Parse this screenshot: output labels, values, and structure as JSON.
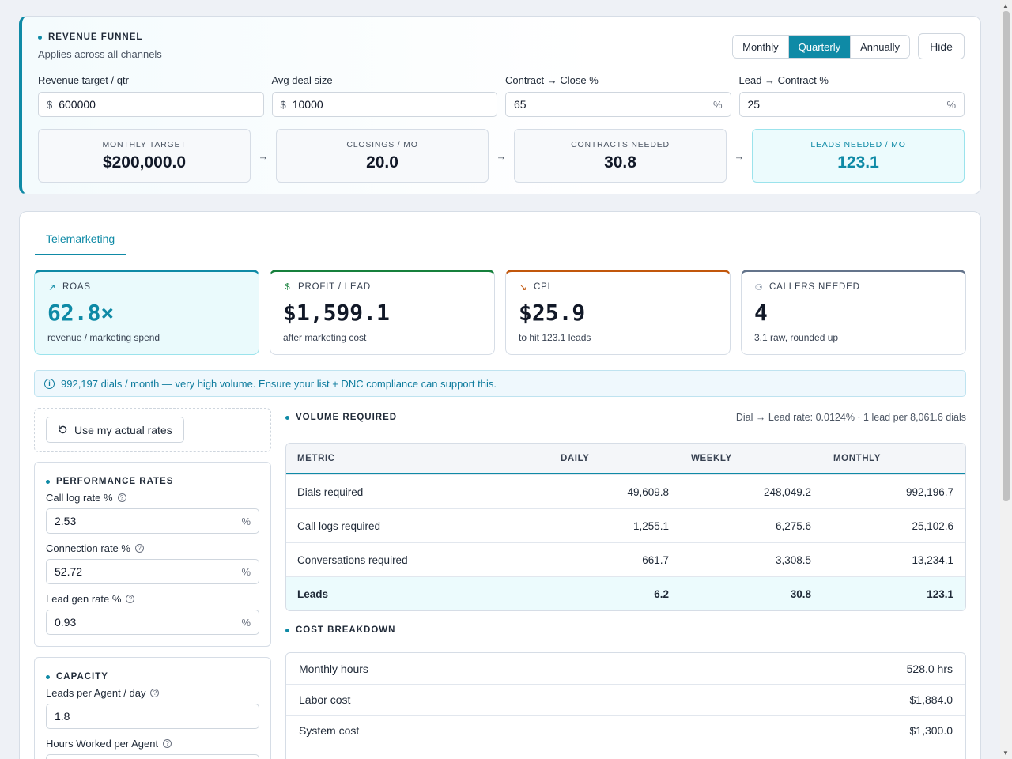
{
  "funnel": {
    "title": "REVENUE FUNNEL",
    "subtitle": "Applies across all channels",
    "periods": [
      "Monthly",
      "Quarterly",
      "Annually"
    ],
    "active_period": "Quarterly",
    "hide_label": "Hide",
    "inputs": [
      {
        "label": "Revenue target / qtr",
        "prefix": "$",
        "value": "600000",
        "suffix": ""
      },
      {
        "label": "Avg deal size",
        "prefix": "$",
        "value": "10000",
        "suffix": ""
      },
      {
        "label": "Contract → Close %",
        "prefix": "",
        "value": "65",
        "suffix": "%"
      },
      {
        "label": "Lead → Contract %",
        "prefix": "",
        "value": "25",
        "suffix": "%"
      }
    ],
    "targets": [
      {
        "label": "MONTHLY TARGET",
        "value": "$200,000.0"
      },
      {
        "label": "CLOSINGS / MO",
        "value": "20.0"
      },
      {
        "label": "CONTRACTS NEEDED",
        "value": "30.8"
      },
      {
        "label": "LEADS NEEDED / MO",
        "value": "123.1"
      }
    ],
    "arrow": "→"
  },
  "tab": {
    "label": "Telemarketing"
  },
  "kpis": [
    {
      "label": "ROAS",
      "icon": "trend-up-icon",
      "glyph": "↗",
      "value": "62.8×",
      "sub": "revenue / marketing spend"
    },
    {
      "label": "PROFIT / LEAD",
      "icon": "dollar-icon",
      "glyph": "$",
      "value": "$1,599.1",
      "sub": "after marketing cost"
    },
    {
      "label": "CPL",
      "icon": "trend-down-icon",
      "glyph": "↘",
      "value": "$25.9",
      "sub": "to hit 123.1 leads"
    },
    {
      "label": "CALLERS NEEDED",
      "icon": "users-icon",
      "glyph": "⚇",
      "value": "4",
      "sub": "3.1 raw, rounded up"
    }
  ],
  "alert": {
    "icon": "info-icon",
    "text": "992,197 dials / month — very high volume. Ensure your list + DNC compliance can support this."
  },
  "actual_rates": {
    "label": "Use my actual rates"
  },
  "performance": {
    "title": "PERFORMANCE RATES",
    "fields": [
      {
        "label": "Call log rate %",
        "value": "2.53",
        "suffix": "%"
      },
      {
        "label": "Connection rate %",
        "value": "52.72",
        "suffix": "%"
      },
      {
        "label": "Lead gen rate %",
        "value": "0.93",
        "suffix": "%"
      }
    ]
  },
  "capacity": {
    "title": "CAPACITY",
    "fields": [
      {
        "label": "Leads per Agent / day",
        "value": "1.8",
        "suffix": ""
      },
      {
        "label": "Hours Worked per Agent",
        "value": "",
        "suffix": ""
      }
    ]
  },
  "volume": {
    "title": "VOLUME REQUIRED",
    "meta": "Dial → Lead rate: 0.0124% · 1 lead per 8,061.6 dials",
    "columns": [
      "METRIC",
      "DAILY",
      "WEEKLY",
      "MONTHLY"
    ],
    "rows": [
      {
        "metric": "Dials required",
        "daily": "49,609.8",
        "weekly": "248,049.2",
        "monthly": "992,196.7"
      },
      {
        "metric": "Call logs required",
        "daily": "1,255.1",
        "weekly": "6,275.6",
        "monthly": "25,102.6"
      },
      {
        "metric": "Conversations required",
        "daily": "661.7",
        "weekly": "3,308.5",
        "monthly": "13,234.1"
      },
      {
        "metric": "Leads",
        "daily": "6.2",
        "weekly": "30.8",
        "monthly": "123.1"
      }
    ]
  },
  "cost": {
    "title": "COST BREAKDOWN",
    "rows": [
      {
        "label": "Monthly hours",
        "value": "528.0 hrs"
      },
      {
        "label": "Labor cost",
        "value": "$1,884.0"
      },
      {
        "label": "System cost",
        "value": "$1,300.0"
      }
    ]
  },
  "colors": {
    "accent": "#0f8aa6",
    "profit": "#16803c",
    "cpl": "#c2570c",
    "callers": "#64748b"
  }
}
